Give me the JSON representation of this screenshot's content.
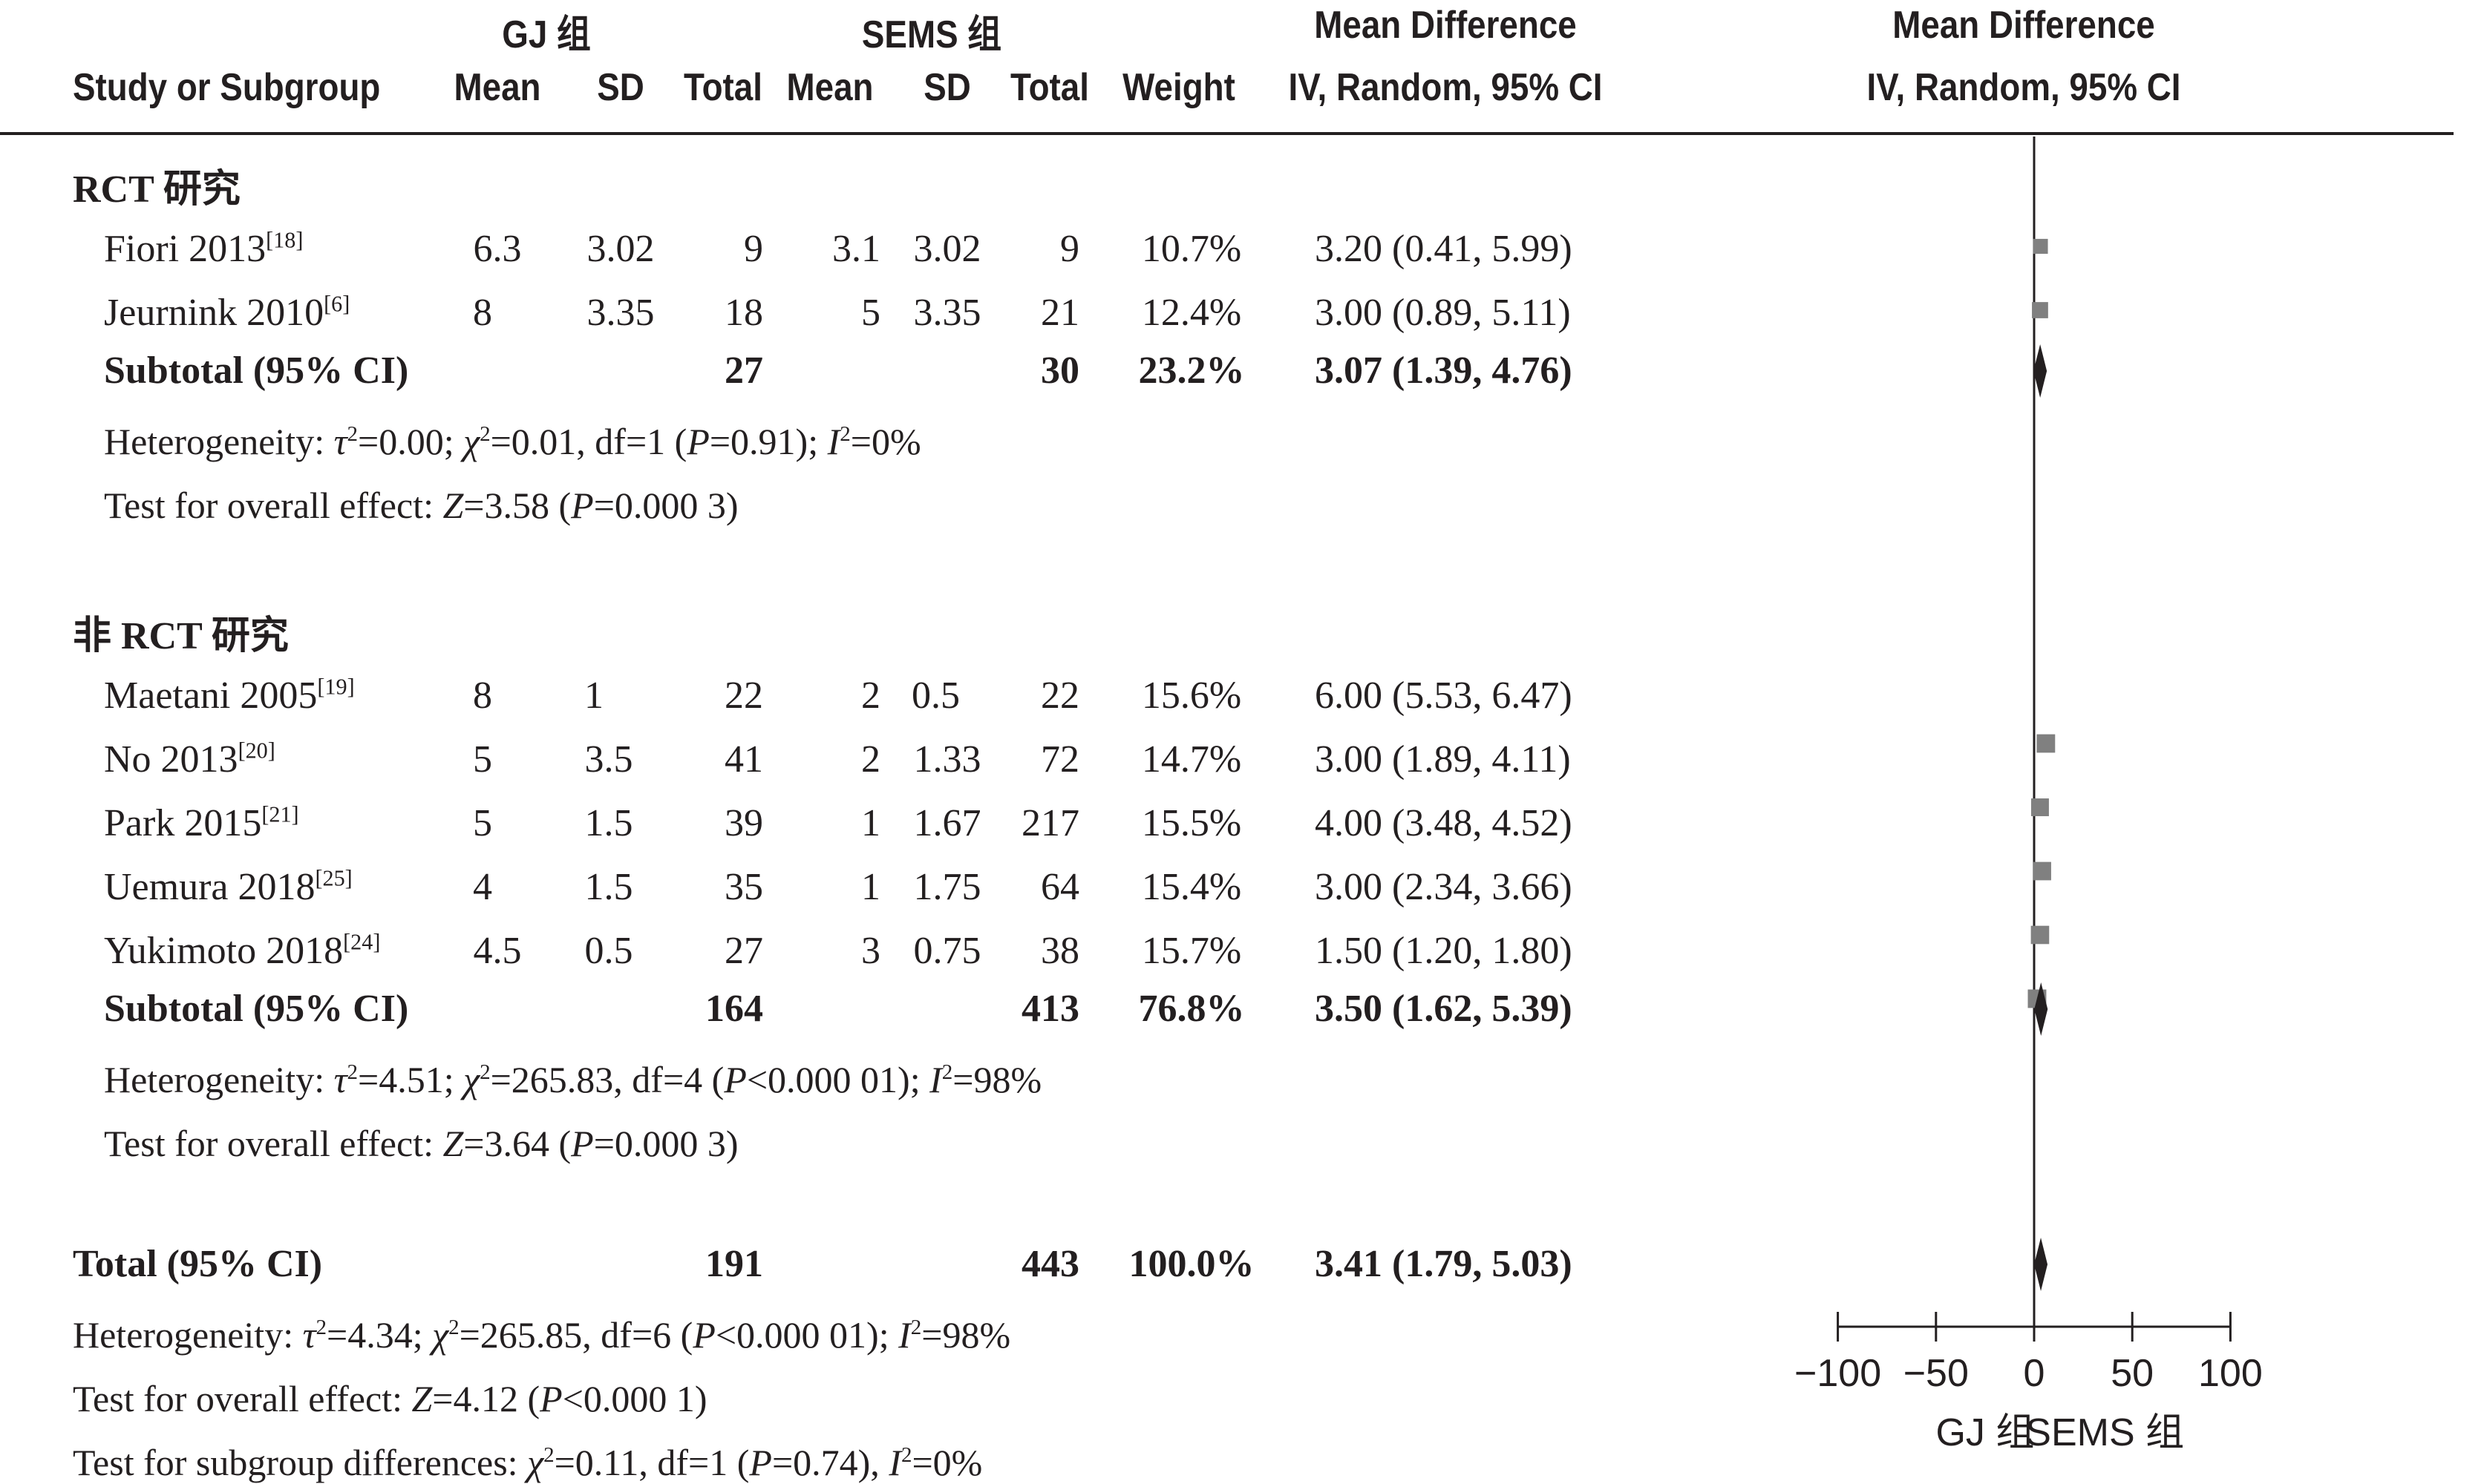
{
  "header": {
    "group1": "GJ 组",
    "group2": "SEMS 组",
    "col_study": "Study or Subgroup",
    "col_mean1": "Mean",
    "col_sd1": "SD",
    "col_total1": "Total",
    "col_mean2": "Mean",
    "col_sd2": "SD",
    "col_total2": "Total",
    "col_weight": "Weight",
    "md_title": "Mean Difference",
    "md_method": "IV, Random, 95% CI",
    "plot_title": "Mean Difference",
    "plot_method": "IV, Random, 95% CI"
  },
  "subgroups": [
    {
      "label": "RCT 研究",
      "studies": [
        {
          "name": "Fiori 2013",
          "ref": "[18]",
          "mean1": "6.3",
          "sd1": "3.02",
          "total1": "9",
          "mean2": "3.1",
          "sd2": "3.02",
          "total2": "9",
          "weight": "10.7%",
          "ci_text": "3.20 (0.41, 5.99)"
        },
        {
          "name": "Jeurnink 2010",
          "ref": "[6]",
          "mean1": "8",
          "sd1": "3.35",
          "total1": "18",
          "mean2": "5",
          "sd2": "3.35",
          "total2": "21",
          "weight": "12.4%",
          "ci_text": "3.00 (0.89, 5.11)"
        }
      ],
      "subtotal": {
        "label": "Subtotal (95% CI)",
        "total1": "27",
        "total2": "30",
        "weight": "23.2%",
        "ci_text": "3.07 (1.39, 4.76)"
      },
      "heterogeneity": {
        "prefix": "Heterogeneity: ",
        "tau_sym": "τ",
        "tau_val": "=0.00; ",
        "chi_sym": "χ",
        "chi_val": "=0.01, df=1 (",
        "p_sym": "P",
        "p_val": "=0.91); ",
        "i_sym": "I",
        "i_val": "=0%"
      },
      "overall": {
        "prefix": "Test for overall effect: ",
        "z_sym": "Z",
        "z_val": "=3.58 (",
        "p_sym": "P",
        "p_val": "=0.000 3)"
      }
    },
    {
      "label": "非 RCT 研究",
      "studies": [
        {
          "name": "Maetani 2005",
          "ref": "[19]",
          "mean1": "8",
          "sd1": "1",
          "total1": "22",
          "mean2": "2",
          "sd2": "0.5",
          "total2": "22",
          "weight": "15.6%",
          "ci_text": "6.00 (5.53, 6.47)"
        },
        {
          "name": "No 2013",
          "ref": "[20]",
          "mean1": "5",
          "sd1": "3.5",
          "total1": "41",
          "mean2": "2",
          "sd2": "1.33",
          "total2": "72",
          "weight": "14.7%",
          "ci_text": "3.00 (1.89, 4.11)"
        },
        {
          "name": "Park 2015",
          "ref": "[21]",
          "mean1": "5",
          "sd1": "1.5",
          "total1": "39",
          "mean2": "1",
          "sd2": "1.67",
          "total2": "217",
          "weight": "15.5%",
          "ci_text": "4.00 (3.48, 4.52)"
        },
        {
          "name": "Uemura 2018",
          "ref": "[25]",
          "mean1": "4",
          "sd1": "1.5",
          "total1": "35",
          "mean2": "1",
          "sd2": "1.75",
          "total2": "64",
          "weight": "15.4%",
          "ci_text": "3.00 (2.34, 3.66)"
        },
        {
          "name": "Yukimoto 2018",
          "ref": "[24]",
          "mean1": "4.5",
          "sd1": "0.5",
          "total1": "27",
          "mean2": "3",
          "sd2": "0.75",
          "total2": "38",
          "weight": "15.7%",
          "ci_text": "1.50 (1.20, 1.80)"
        }
      ],
      "subtotal": {
        "label": "Subtotal (95% CI)",
        "total1": "164",
        "total2": "413",
        "weight": "76.8%",
        "ci_text": "3.50 (1.62, 5.39)"
      },
      "heterogeneity": {
        "prefix": "Heterogeneity: ",
        "tau_sym": "τ",
        "tau_val": "=4.51; ",
        "chi_sym": "χ",
        "chi_val": "=265.83, df=4 (",
        "p_sym": "P",
        "p_val": "<0.000 01); ",
        "i_sym": "I",
        "i_val": "=98%"
      },
      "overall": {
        "prefix": "Test for overall effect: ",
        "z_sym": "Z",
        "z_val": "=3.64 (",
        "p_sym": "P",
        "p_val": "=0.000 3)"
      }
    }
  ],
  "total": {
    "label": "Total (95% CI)",
    "total1": "191",
    "total2": "443",
    "weight": "100.0%",
    "ci_text": "3.41 (1.79, 5.03)"
  },
  "total_heterogeneity": {
    "prefix": "Heterogeneity: ",
    "tau_sym": "τ",
    "tau_val": "=4.34; ",
    "chi_sym": "χ",
    "chi_val": "=265.85, df=6 (",
    "p_sym": "P",
    "p_val": "<0.000 01); ",
    "i_sym": "I",
    "i_val": "=98%"
  },
  "total_overall": {
    "prefix": "Test for overall effect: ",
    "z_sym": "Z",
    "z_val": "=4.12 (",
    "p_sym": "P",
    "p_val": "<0.000 1)"
  },
  "subgroup_diff": {
    "prefix": "Test for subgroup differences: ",
    "chi_sym": "χ",
    "chi_val": "=0.11, df=1 (",
    "p_sym": "P",
    "p_val": "=0.74), ",
    "i_sym": "I",
    "i_val": "=0%"
  },
  "chart_data": {
    "type": "forest",
    "x_ticks": [
      -100,
      -50,
      0,
      50,
      100
    ],
    "x_tick_labels": [
      "−100",
      "−50",
      "0",
      "50",
      "100"
    ],
    "xlim": [
      -100,
      100
    ],
    "favours_left": "GJ 组",
    "favours_right": "SEMS 组",
    "studies": [
      {
        "name": "Fiori 2013",
        "md": 3.2,
        "lo": 0.41,
        "hi": 5.99,
        "weight": 10.7
      },
      {
        "name": "Jeurnink 2010",
        "md": 3.0,
        "lo": 0.89,
        "hi": 5.11,
        "weight": 12.4
      },
      {
        "name": "Maetani 2005",
        "md": 6.0,
        "lo": 5.53,
        "hi": 6.47,
        "weight": 15.6
      },
      {
        "name": "No 2013",
        "md": 3.0,
        "lo": 1.89,
        "hi": 4.11,
        "weight": 14.7
      },
      {
        "name": "Park 2015",
        "md": 4.0,
        "lo": 3.48,
        "hi": 4.52,
        "weight": 15.5
      },
      {
        "name": "Uemura 2018",
        "md": 3.0,
        "lo": 2.34,
        "hi": 3.66,
        "weight": 15.4
      },
      {
        "name": "Yukimoto 2018",
        "md": 1.5,
        "lo": 1.2,
        "hi": 1.8,
        "weight": 15.7
      }
    ],
    "summaries": [
      {
        "name": "RCT subtotal",
        "md": 3.07,
        "lo": 1.39,
        "hi": 4.76
      },
      {
        "name": "Non-RCT subtotal",
        "md": 3.5,
        "lo": 1.62,
        "hi": 5.39
      },
      {
        "name": "Total",
        "md": 3.41,
        "lo": 1.79,
        "hi": 5.03
      }
    ],
    "colors": {
      "square": "#808080",
      "diamond": "#231f20",
      "axis": "#231f20"
    }
  }
}
